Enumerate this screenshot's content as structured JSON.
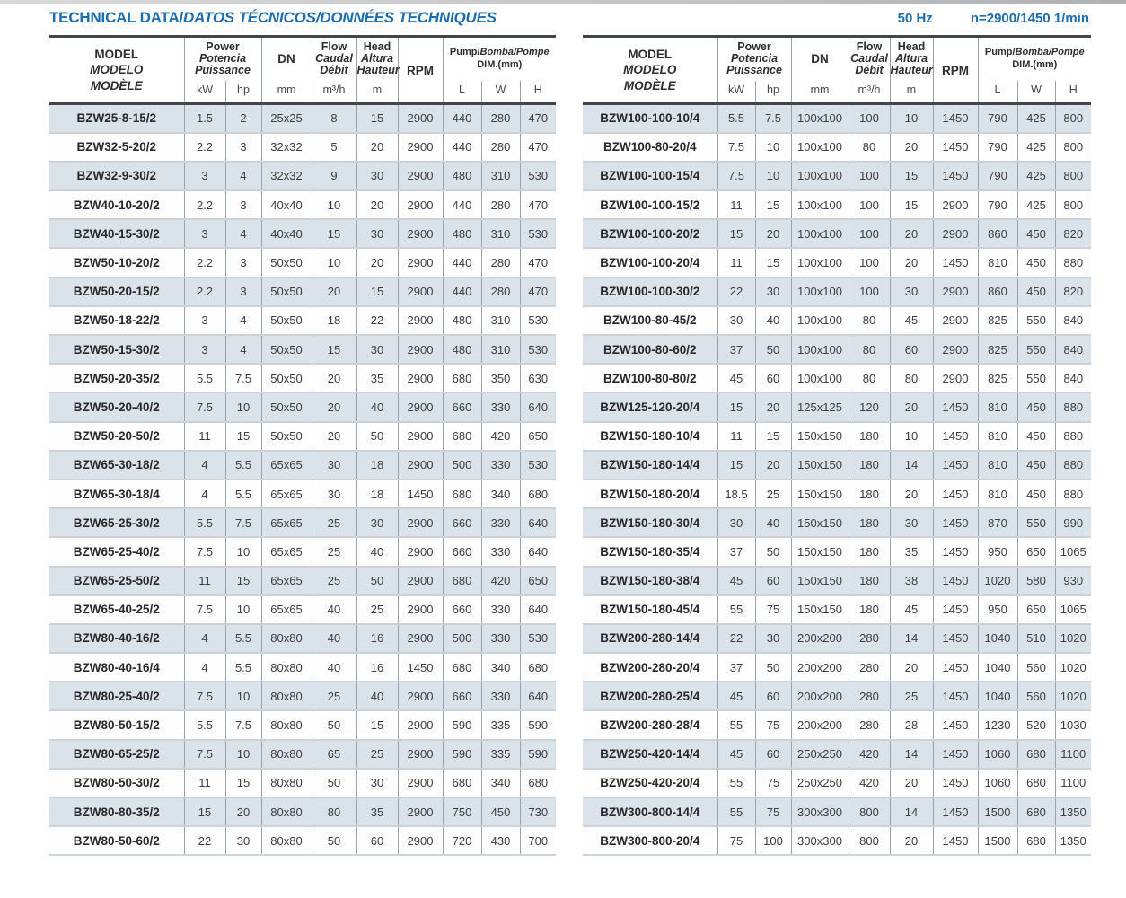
{
  "page": {
    "title_main": "TECHNICAL DATA/",
    "title_italic": "DATOS TÉCNICOS/DONNÉES TECHNIQUES",
    "frequency": "50 Hz",
    "speed": "n=2900/1450 1/min"
  },
  "colors": {
    "accent_blue": "#1d6dae",
    "row_stripe": "#dbe3ea",
    "dark_rule": "#41464c"
  },
  "table_header": {
    "model_lines": [
      "MODEL",
      "MODELO",
      "MODÈLE"
    ],
    "power_lines": [
      "Power",
      "Potencia",
      "Puissance"
    ],
    "power_units": [
      "kW",
      "hp"
    ],
    "dn_label": "DN",
    "dn_unit": "mm",
    "flow_lines": [
      "Flow",
      "Caudal",
      "Débit"
    ],
    "flow_unit": "m³/h",
    "head_lines": [
      "Head",
      "Altura",
      "Hauteur"
    ],
    "head_unit": "m",
    "rpm_label": "RPM",
    "dim_prefix": "Pump/",
    "dim_italic": "Bomba/Pompe",
    "dim_line2": "DIM.(mm)",
    "dim_units": [
      "L",
      "W",
      "H"
    ]
  },
  "tables": {
    "left": {
      "rows": [
        [
          "BZW25-8-15/2",
          "1.5",
          "2",
          "25x25",
          "8",
          "15",
          "2900",
          "440",
          "280",
          "470"
        ],
        [
          "BZW32-5-20/2",
          "2.2",
          "3",
          "32x32",
          "5",
          "20",
          "2900",
          "440",
          "280",
          "470"
        ],
        [
          "BZW32-9-30/2",
          "3",
          "4",
          "32x32",
          "9",
          "30",
          "2900",
          "480",
          "310",
          "530"
        ],
        [
          "BZW40-10-20/2",
          "2.2",
          "3",
          "40x40",
          "10",
          "20",
          "2900",
          "440",
          "280",
          "470"
        ],
        [
          "BZW40-15-30/2",
          "3",
          "4",
          "40x40",
          "15",
          "30",
          "2900",
          "480",
          "310",
          "530"
        ],
        [
          "BZW50-10-20/2",
          "2.2",
          "3",
          "50x50",
          "10",
          "20",
          "2900",
          "440",
          "280",
          "470"
        ],
        [
          "BZW50-20-15/2",
          "2.2",
          "3",
          "50x50",
          "20",
          "15",
          "2900",
          "440",
          "280",
          "470"
        ],
        [
          "BZW50-18-22/2",
          "3",
          "4",
          "50x50",
          "18",
          "22",
          "2900",
          "480",
          "310",
          "530"
        ],
        [
          "BZW50-15-30/2",
          "3",
          "4",
          "50x50",
          "15",
          "30",
          "2900",
          "480",
          "310",
          "530"
        ],
        [
          "BZW50-20-35/2",
          "5.5",
          "7.5",
          "50x50",
          "20",
          "35",
          "2900",
          "680",
          "350",
          "630"
        ],
        [
          "BZW50-20-40/2",
          "7.5",
          "10",
          "50x50",
          "20",
          "40",
          "2900",
          "660",
          "330",
          "640"
        ],
        [
          "BZW50-20-50/2",
          "11",
          "15",
          "50x50",
          "20",
          "50",
          "2900",
          "680",
          "420",
          "650"
        ],
        [
          "BZW65-30-18/2",
          "4",
          "5.5",
          "65x65",
          "30",
          "18",
          "2900",
          "500",
          "330",
          "530"
        ],
        [
          "BZW65-30-18/4",
          "4",
          "5.5",
          "65x65",
          "30",
          "18",
          "1450",
          "680",
          "340",
          "680"
        ],
        [
          "BZW65-25-30/2",
          "5.5",
          "7.5",
          "65x65",
          "25",
          "30",
          "2900",
          "660",
          "330",
          "640"
        ],
        [
          "BZW65-25-40/2",
          "7.5",
          "10",
          "65x65",
          "25",
          "40",
          "2900",
          "660",
          "330",
          "640"
        ],
        [
          "BZW65-25-50/2",
          "11",
          "15",
          "65x65",
          "25",
          "50",
          "2900",
          "680",
          "420",
          "650"
        ],
        [
          "BZW65-40-25/2",
          "7.5",
          "10",
          "65x65",
          "40",
          "25",
          "2900",
          "660",
          "330",
          "640"
        ],
        [
          "BZW80-40-16/2",
          "4",
          "5.5",
          "80x80",
          "40",
          "16",
          "2900",
          "500",
          "330",
          "530"
        ],
        [
          "BZW80-40-16/4",
          "4",
          "5.5",
          "80x80",
          "40",
          "16",
          "1450",
          "680",
          "340",
          "680"
        ],
        [
          "BZW80-25-40/2",
          "7.5",
          "10",
          "80x80",
          "25",
          "40",
          "2900",
          "660",
          "330",
          "640"
        ],
        [
          "BZW80-50-15/2",
          "5.5",
          "7.5",
          "80x80",
          "50",
          "15",
          "2900",
          "590",
          "335",
          "590"
        ],
        [
          "BZW80-65-25/2",
          "7.5",
          "10",
          "80x80",
          "65",
          "25",
          "2900",
          "590",
          "335",
          "590"
        ],
        [
          "BZW80-50-30/2",
          "11",
          "15",
          "80x80",
          "50",
          "30",
          "2900",
          "680",
          "340",
          "680"
        ],
        [
          "BZW80-80-35/2",
          "15",
          "20",
          "80x80",
          "80",
          "35",
          "2900",
          "750",
          "450",
          "730"
        ],
        [
          "BZW80-50-60/2",
          "22",
          "30",
          "80x80",
          "50",
          "60",
          "2900",
          "720",
          "430",
          "700"
        ]
      ]
    },
    "right": {
      "rows": [
        [
          "BZW100-100-10/4",
          "5.5",
          "7.5",
          "100x100",
          "100",
          "10",
          "1450",
          "790",
          "425",
          "800"
        ],
        [
          "BZW100-80-20/4",
          "7.5",
          "10",
          "100x100",
          "80",
          "20",
          "1450",
          "790",
          "425",
          "800"
        ],
        [
          "BZW100-100-15/4",
          "7.5",
          "10",
          "100x100",
          "100",
          "15",
          "1450",
          "790",
          "425",
          "800"
        ],
        [
          "BZW100-100-15/2",
          "11",
          "15",
          "100x100",
          "100",
          "15",
          "2900",
          "790",
          "425",
          "800"
        ],
        [
          "BZW100-100-20/2",
          "15",
          "20",
          "100x100",
          "100",
          "20",
          "2900",
          "860",
          "450",
          "820"
        ],
        [
          "BZW100-100-20/4",
          "11",
          "15",
          "100x100",
          "100",
          "20",
          "1450",
          "810",
          "450",
          "880"
        ],
        [
          "BZW100-100-30/2",
          "22",
          "30",
          "100x100",
          "100",
          "30",
          "2900",
          "860",
          "450",
          "820"
        ],
        [
          "BZW100-80-45/2",
          "30",
          "40",
          "100x100",
          "80",
          "45",
          "2900",
          "825",
          "550",
          "840"
        ],
        [
          "BZW100-80-60/2",
          "37",
          "50",
          "100x100",
          "80",
          "60",
          "2900",
          "825",
          "550",
          "840"
        ],
        [
          "BZW100-80-80/2",
          "45",
          "60",
          "100x100",
          "80",
          "80",
          "2900",
          "825",
          "550",
          "840"
        ],
        [
          "BZW125-120-20/4",
          "15",
          "20",
          "125x125",
          "120",
          "20",
          "1450",
          "810",
          "450",
          "880"
        ],
        [
          "BZW150-180-10/4",
          "11",
          "15",
          "150x150",
          "180",
          "10",
          "1450",
          "810",
          "450",
          "880"
        ],
        [
          "BZW150-180-14/4",
          "15",
          "20",
          "150x150",
          "180",
          "14",
          "1450",
          "810",
          "450",
          "880"
        ],
        [
          "BZW150-180-20/4",
          "18.5",
          "25",
          "150x150",
          "180",
          "20",
          "1450",
          "810",
          "450",
          "880"
        ],
        [
          "BZW150-180-30/4",
          "30",
          "40",
          "150x150",
          "180",
          "30",
          "1450",
          "870",
          "550",
          "990"
        ],
        [
          "BZW150-180-35/4",
          "37",
          "50",
          "150x150",
          "180",
          "35",
          "1450",
          "950",
          "650",
          "1065"
        ],
        [
          "BZW150-180-38/4",
          "45",
          "60",
          "150x150",
          "180",
          "38",
          "1450",
          "1020",
          "580",
          "930"
        ],
        [
          "BZW150-180-45/4",
          "55",
          "75",
          "150x150",
          "180",
          "45",
          "1450",
          "950",
          "650",
          "1065"
        ],
        [
          "BZW200-280-14/4",
          "22",
          "30",
          "200x200",
          "280",
          "14",
          "1450",
          "1040",
          "510",
          "1020"
        ],
        [
          "BZW200-280-20/4",
          "37",
          "50",
          "200x200",
          "280",
          "20",
          "1450",
          "1040",
          "560",
          "1020"
        ],
        [
          "BZW200-280-25/4",
          "45",
          "60",
          "200x200",
          "280",
          "25",
          "1450",
          "1040",
          "560",
          "1020"
        ],
        [
          "BZW200-280-28/4",
          "55",
          "75",
          "200x200",
          "280",
          "28",
          "1450",
          "1230",
          "520",
          "1030"
        ],
        [
          "BZW250-420-14/4",
          "45",
          "60",
          "250x250",
          "420",
          "14",
          "1450",
          "1060",
          "680",
          "1100"
        ],
        [
          "BZW250-420-20/4",
          "55",
          "75",
          "250x250",
          "420",
          "20",
          "1450",
          "1060",
          "680",
          "1100"
        ],
        [
          "BZW300-800-14/4",
          "55",
          "75",
          "300x300",
          "800",
          "14",
          "1450",
          "1500",
          "680",
          "1350"
        ],
        [
          "BZW300-800-20/4",
          "75",
          "100",
          "300x300",
          "800",
          "20",
          "1450",
          "1500",
          "680",
          "1350"
        ]
      ]
    }
  }
}
